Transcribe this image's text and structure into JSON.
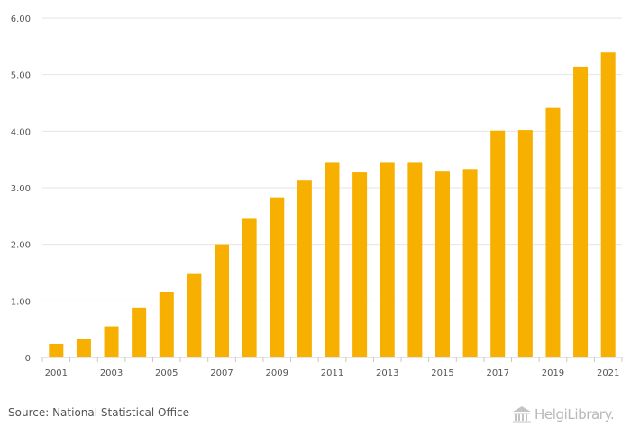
{
  "chart_data": {
    "type": "bar",
    "title": "",
    "xlabel": "",
    "ylabel": "",
    "categories": [
      "2001",
      "2002",
      "2003",
      "2004",
      "2005",
      "2006",
      "2007",
      "2008",
      "2009",
      "2010",
      "2011",
      "2012",
      "2013",
      "2014",
      "2015",
      "2016",
      "2017",
      "2018",
      "2019",
      "2020",
      "2021"
    ],
    "values": [
      0.24,
      0.32,
      0.55,
      0.88,
      1.15,
      1.49,
      2.0,
      2.45,
      2.83,
      3.14,
      3.44,
      3.27,
      3.44,
      3.44,
      3.3,
      3.33,
      4.01,
      4.02,
      4.41,
      5.14,
      5.39
    ],
    "x_tick_labels": [
      "2001",
      "2003",
      "2005",
      "2007",
      "2009",
      "2011",
      "2013",
      "2015",
      "2017",
      "2019",
      "2021"
    ],
    "y_tick_labels": [
      "0",
      "1.00",
      "2.00",
      "3.00",
      "4.00",
      "5.00",
      "6.00"
    ],
    "y_ticks": [
      0,
      1,
      2,
      3,
      4,
      5,
      6
    ],
    "ylim": [
      0,
      6
    ],
    "grid": true,
    "bar_color": "#f7af00",
    "grid_color": "#e6e6e6",
    "axis_color": "#c8c8c8"
  },
  "footer": {
    "source": "Source: National Statistical Office",
    "logo_text": "HelgiLibrary."
  }
}
